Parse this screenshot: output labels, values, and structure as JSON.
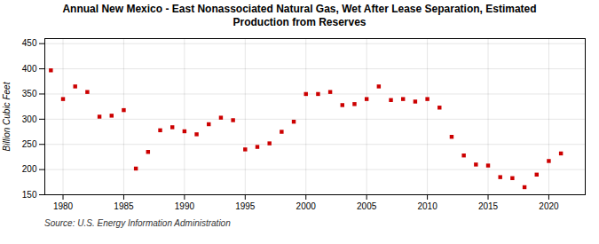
{
  "chart_data": {
    "type": "scatter",
    "title": "Annual New Mexico - East Nonassociated Natural Gas, Wet After Lease Separation, Estimated\nProduction from Reserves",
    "ylabel": "Billion Cubic Feet",
    "source": "Source: U.S. Energy Information Administration",
    "color": "#cc0000",
    "marker": "square",
    "grid": true,
    "xlim": [
      1978.5,
      2023
    ],
    "ylim": [
      150,
      460
    ],
    "xticks": [
      1980,
      1985,
      1990,
      1995,
      2000,
      2005,
      2010,
      2015,
      2020
    ],
    "yticks": [
      150,
      200,
      250,
      300,
      350,
      400,
      450
    ],
    "x": [
      1979,
      1980,
      1981,
      1982,
      1983,
      1984,
      1985,
      1986,
      1987,
      1988,
      1989,
      1990,
      1991,
      1992,
      1993,
      1994,
      1995,
      1996,
      1997,
      1998,
      1999,
      2000,
      2001,
      2002,
      2003,
      2004,
      2005,
      2006,
      2007,
      2008,
      2009,
      2010,
      2011,
      2012,
      2013,
      2014,
      2015,
      2016,
      2017,
      2018,
      2019,
      2020,
      2021
    ],
    "values": [
      397,
      340,
      365,
      354,
      305,
      307,
      318,
      202,
      235,
      278,
      284,
      276,
      270,
      290,
      303,
      298,
      240,
      245,
      252,
      275,
      295,
      350,
      350,
      354,
      328,
      330,
      340,
      365,
      338,
      340,
      335,
      340,
      323,
      265,
      228,
      210,
      208,
      185,
      183,
      165,
      190,
      217,
      232
    ]
  }
}
